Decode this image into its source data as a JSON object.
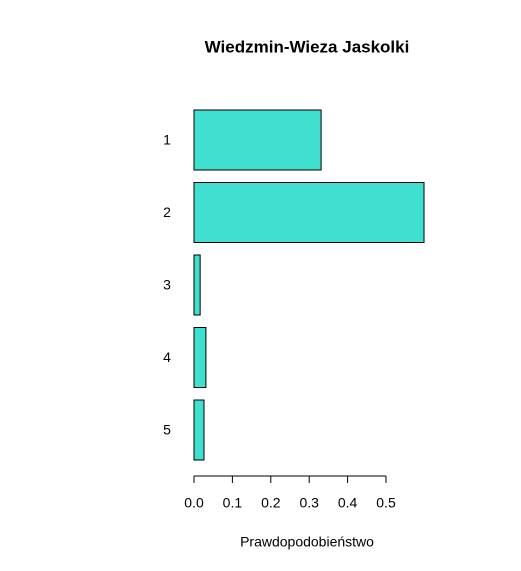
{
  "chart_data": {
    "type": "barh",
    "title": "Wiedzmin-Wieza Jaskolki",
    "xlabel": "Prawdopodobieństwo",
    "categories": [
      "1",
      "2",
      "3",
      "4",
      "5"
    ],
    "values": [
      0.331,
      0.599,
      0.016,
      0.031,
      0.026
    ],
    "color": "#40e0d0",
    "xlim": [
      0,
      0.6
    ],
    "xticks": [
      {
        "value": 0,
        "label": "0.0"
      },
      0.1,
      0.2,
      0.3,
      0.4,
      0.5
    ]
  }
}
